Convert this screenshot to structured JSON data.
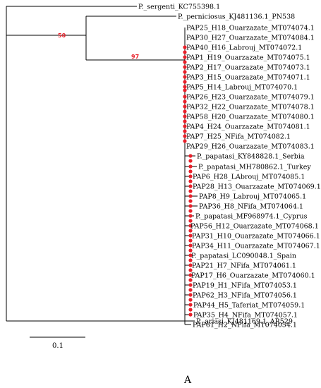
{
  "leaves": [
    "P._sergenti_KC755398.1",
    "P._perniciosus_KJ481136.1_PN538",
    "PAP25_H18_Ouarzazate_MT074074.1",
    "PAP30_H27_Ouarzazate_MT074084.1",
    "PAP40_H16_Labrouj_MT074072.1",
    "PAP1_H19_Ouarzazate_MT074075.1",
    "PAP2_H17_Ouarzazate_MT074073.1",
    "PAP3_H15_Ouarzazate_MT074071.1",
    "PAP5_H14_Labrouj_MT074070.1",
    "PAP26_H23_Ouarzazate_MT074079.1",
    "PAP32_H22_Ouarzazate_MT074078.1",
    "PAP58_H20_Ouarzazate_MT074080.1",
    "PAP4_H24_Ouarzazate_MT074081.1",
    "PAP7_H25_NFifa_MT074082.1",
    "PAP29_H26_Ouarzazate_MT074083.1",
    "P._papatasi_KY848828.1_Serbia",
    "P._papatasi_MH780862.1_Turkey",
    "PAP6_H28_LAbrouj_MT074085.1",
    "PAP28_H13_Ouarzazate_MT074069.1",
    "PAP8_H9_Labrouj_MT074065.1",
    "PAP36_H8_NFifa_MT074064.1",
    "P._papatasi_MF968974.1_Cyprus",
    "PAP56_H12_Ouarzazate_MT074068.1",
    "PAP31_H10_Ouarzazate_MT074066.1",
    "PAP34_H11_Ouarzazate_MT074067.1",
    "P._papatasi_LC090048.1_Spain",
    "PAP21_H7_NFifa_MT074061.1",
    "PAP17_H6_Ouarzazate_MT074060.1",
    "PAP19_H1_NFifa_MT074053.1",
    "PAP62_H3_NFifa_MT074056.1",
    "PAP44_H5_Taferiat_MT074059.1",
    "PAP35_H4_NFifa_MT074057.1",
    "PAP61_H2_NFifa_MT074054.1",
    "P._ariasi_KJ481169.1_AR529"
  ],
  "support_values": {
    "node_perniciosus_clade": "50",
    "node_papatasi_clade": "97"
  },
  "scale_bar": {
    "label": "0.1"
  },
  "panel_label": "A",
  "colors": {
    "branch": "#000000",
    "support": "#e8202a",
    "node_marker": "#e8202a"
  }
}
